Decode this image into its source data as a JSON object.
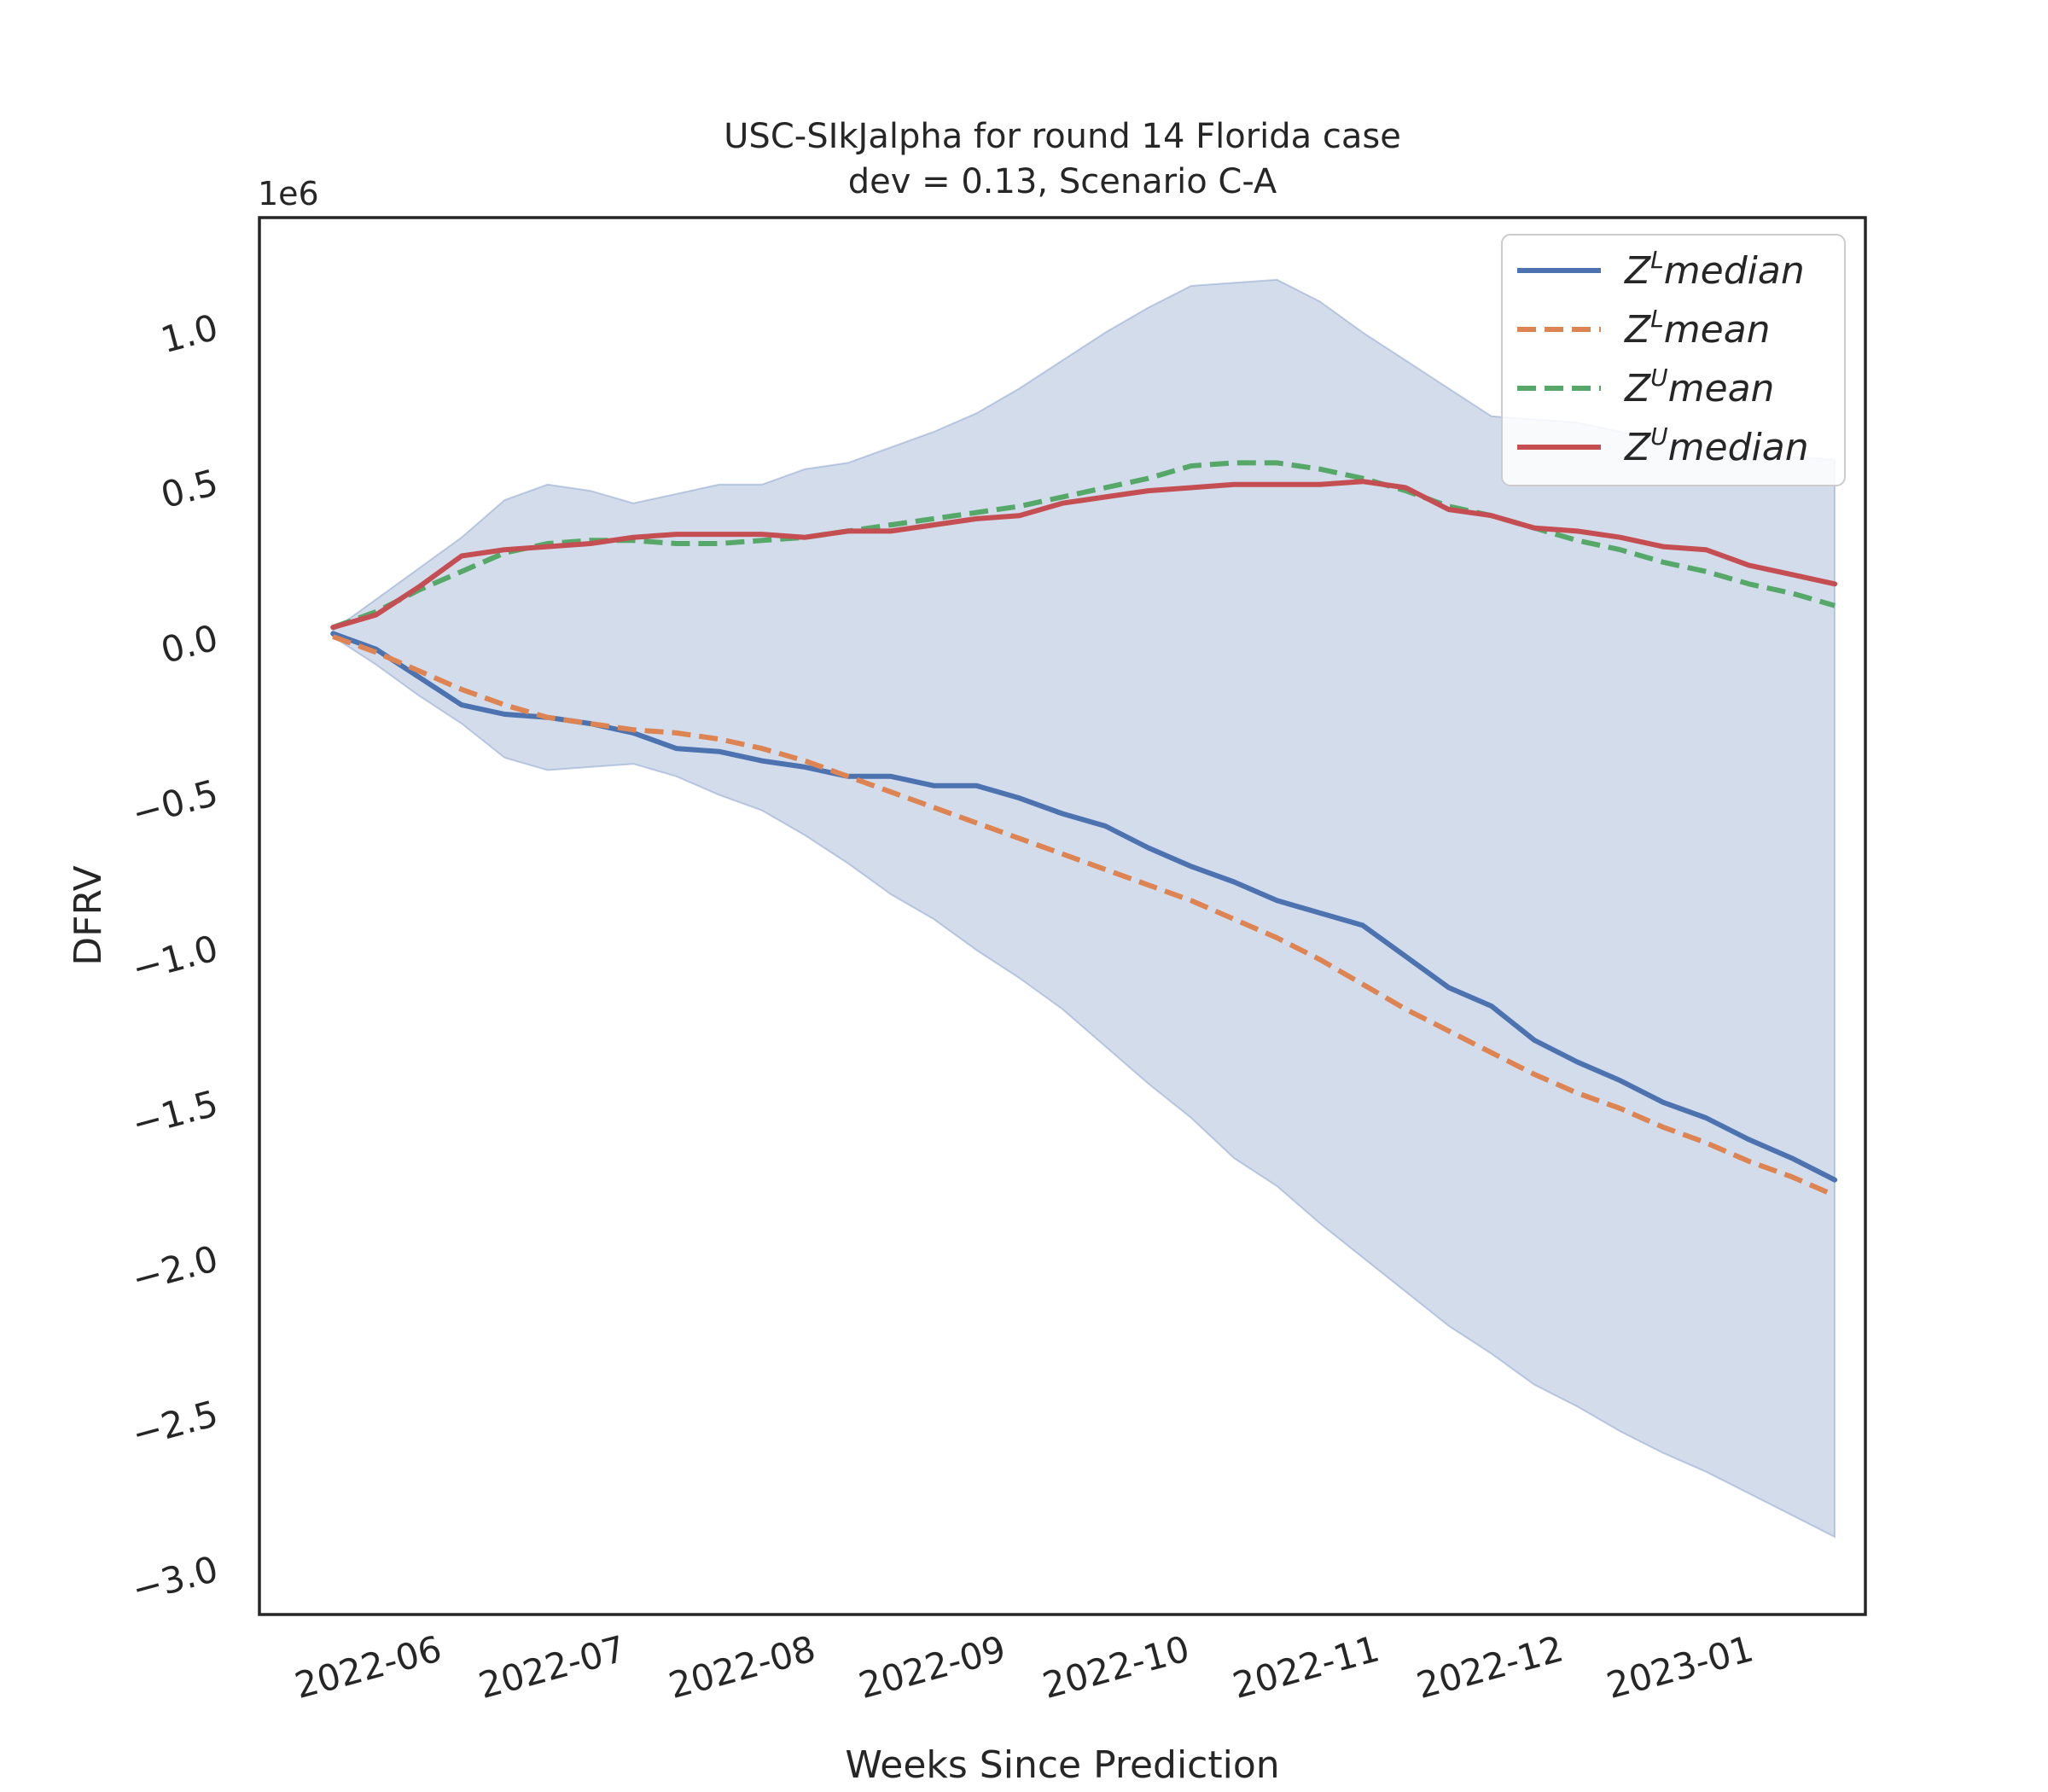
{
  "chart_data": {
    "type": "line",
    "title": "USC-SIkJalpha for round 14 Florida case",
    "subtitle": "dev = 0.13, Scenario C-A",
    "xlabel": "Weeks Since Prediction",
    "ylabel": "DFRV",
    "y_offset_text": "1e6",
    "y_scale": 1000000,
    "x_type": "date",
    "xlim": [
      "2022-05-05",
      "2023-01-22"
    ],
    "ylim": [
      -3.15,
      1.35
    ],
    "x_ticks": [
      "2022-06-01",
      "2022-07-01",
      "2022-08-01",
      "2022-09-01",
      "2022-10-01",
      "2022-11-01",
      "2022-12-01",
      "2023-01-01"
    ],
    "x_tick_labels": [
      "2022-06",
      "2022-07",
      "2022-08",
      "2022-09",
      "2022-10",
      "2022-11",
      "2022-12",
      "2023-01"
    ],
    "y_ticks": [
      1.0,
      0.5,
      0.0,
      -0.5,
      -1.0,
      -1.5,
      -2.0,
      -2.5,
      -3.0
    ],
    "y_tick_labels": [
      "1.0",
      "0.5",
      "0.0",
      "−0.5",
      "−1.0",
      "−1.5",
      "−2.0",
      "−2.5",
      "−3.0"
    ],
    "grid": false,
    "legend_position": "top-right",
    "x": [
      "2022-05-17",
      "2022-05-24",
      "2022-05-31",
      "2022-06-07",
      "2022-06-14",
      "2022-06-21",
      "2022-06-28",
      "2022-07-05",
      "2022-07-12",
      "2022-07-19",
      "2022-07-26",
      "2022-08-02",
      "2022-08-09",
      "2022-08-16",
      "2022-08-23",
      "2022-08-30",
      "2022-09-06",
      "2022-09-13",
      "2022-09-20",
      "2022-09-27",
      "2022-10-04",
      "2022-10-11",
      "2022-10-18",
      "2022-10-25",
      "2022-11-01",
      "2022-11-08",
      "2022-11-15",
      "2022-11-22",
      "2022-11-29",
      "2022-12-06",
      "2022-12-13",
      "2022-12-20",
      "2022-12-27",
      "2023-01-03",
      "2023-01-10",
      "2023-01-17"
    ],
    "band": {
      "upper": [
        0.02,
        0.12,
        0.22,
        0.32,
        0.44,
        0.49,
        0.47,
        0.43,
        0.46,
        0.49,
        0.49,
        0.54,
        0.56,
        0.61,
        0.66,
        0.72,
        0.8,
        0.89,
        0.98,
        1.06,
        1.13,
        1.14,
        1.15,
        1.08,
        0.98,
        0.89,
        0.8,
        0.71,
        0.7,
        0.69,
        0.66,
        0.63,
        0.61,
        0.59,
        0.58,
        0.57
      ],
      "lower": [
        0.0,
        -0.09,
        -0.19,
        -0.28,
        -0.39,
        -0.43,
        -0.42,
        -0.41,
        -0.45,
        -0.51,
        -0.56,
        -0.64,
        -0.73,
        -0.83,
        -0.91,
        -1.01,
        -1.1,
        -1.2,
        -1.32,
        -1.44,
        -1.55,
        -1.68,
        -1.77,
        -1.89,
        -2.0,
        -2.11,
        -2.22,
        -2.31,
        -2.41,
        -2.48,
        -2.56,
        -2.63,
        -2.69,
        -2.76,
        -2.83,
        -2.9
      ]
    },
    "series": [
      {
        "name": "median_L",
        "label": "median",
        "sup": "L",
        "color": "#4c72b0",
        "dash": "solid",
        "values": [
          0.01,
          -0.04,
          -0.13,
          -0.22,
          -0.25,
          -0.26,
          -0.28,
          -0.31,
          -0.36,
          -0.37,
          -0.4,
          -0.42,
          -0.45,
          -0.45,
          -0.48,
          -0.48,
          -0.52,
          -0.57,
          -0.61,
          -0.68,
          -0.74,
          -0.79,
          -0.85,
          -0.89,
          -0.93,
          -1.03,
          -1.13,
          -1.19,
          -1.3,
          -1.37,
          -1.43,
          -1.5,
          -1.55,
          -1.62,
          -1.68,
          -1.75
        ]
      },
      {
        "name": "mean_L",
        "label": "mean",
        "sup": "L",
        "color": "#dd8452",
        "dash": "dashed",
        "values": [
          0.0,
          -0.05,
          -0.11,
          -0.17,
          -0.22,
          -0.26,
          -0.28,
          -0.3,
          -0.31,
          -0.33,
          -0.36,
          -0.4,
          -0.45,
          -0.5,
          -0.55,
          -0.6,
          -0.65,
          -0.7,
          -0.75,
          -0.8,
          -0.85,
          -0.91,
          -0.97,
          -1.04,
          -1.12,
          -1.2,
          -1.27,
          -1.34,
          -1.41,
          -1.47,
          -1.52,
          -1.58,
          -1.63,
          -1.69,
          -1.74,
          -1.8
        ]
      },
      {
        "name": "mean_U",
        "label": "mean",
        "sup": "U",
        "color": "#55a868",
        "dash": "dashed",
        "values": [
          0.03,
          0.08,
          0.15,
          0.21,
          0.27,
          0.3,
          0.31,
          0.31,
          0.3,
          0.3,
          0.31,
          0.32,
          0.34,
          0.36,
          0.38,
          0.4,
          0.42,
          0.45,
          0.48,
          0.51,
          0.55,
          0.56,
          0.56,
          0.54,
          0.51,
          0.47,
          0.42,
          0.39,
          0.35,
          0.31,
          0.28,
          0.24,
          0.21,
          0.17,
          0.14,
          0.1
        ]
      },
      {
        "name": "median_U",
        "label": "median",
        "sup": "U",
        "color": "#c44e52",
        "dash": "solid",
        "values": [
          0.03,
          0.07,
          0.16,
          0.26,
          0.28,
          0.29,
          0.3,
          0.32,
          0.33,
          0.33,
          0.33,
          0.32,
          0.34,
          0.34,
          0.36,
          0.38,
          0.39,
          0.43,
          0.45,
          0.47,
          0.48,
          0.49,
          0.49,
          0.49,
          0.5,
          0.48,
          0.41,
          0.39,
          0.35,
          0.34,
          0.32,
          0.29,
          0.28,
          0.23,
          0.2,
          0.17
        ]
      }
    ],
    "legend_order": [
      "median_L",
      "mean_L",
      "mean_U",
      "median_U"
    ],
    "band_color": "#4c72b0"
  }
}
